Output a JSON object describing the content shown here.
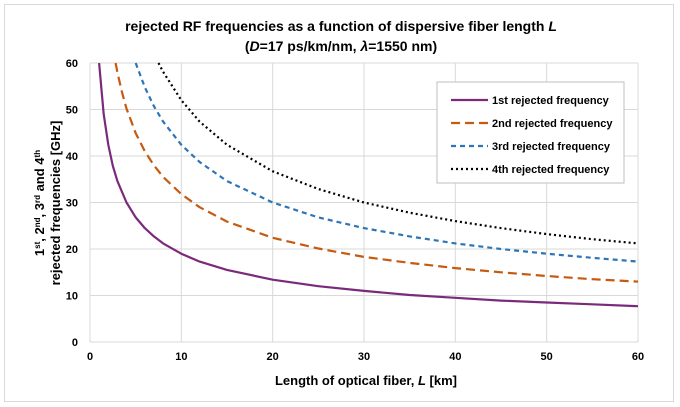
{
  "chart_data": {
    "type": "line",
    "title_line1": "rejected RF frequencies as a function of dispersive fiber length ",
    "title_line1_var": "L",
    "title_line2_pre": "(",
    "title_D": "D",
    "title_mid": "=17 ps/km/nm, ",
    "title_lambda": "λ",
    "title_post": "=1550 nm)",
    "xlabel_pre": "Length of optical fiber,  ",
    "xlabel_var": "L",
    "xlabel_post": " [km]",
    "ylabel_line1": "1st, 2nd, 3rd and 4th",
    "ylabel_line2": "rejected frequencies [GHz]",
    "xlim": [
      0,
      60
    ],
    "ylim": [
      0,
      60
    ],
    "xticks": [
      0,
      10,
      20,
      30,
      40,
      50,
      60
    ],
    "yticks": [
      0,
      10,
      20,
      30,
      40,
      50,
      60
    ],
    "grid": true,
    "legend_position": "top-right",
    "series": [
      {
        "name": "1st rejected frequency",
        "color": "#7b2a7b",
        "dash": "solid",
        "x": [
          1.0,
          1.5,
          2,
          2.5,
          3,
          4,
          5,
          6,
          7,
          8,
          10,
          12,
          15,
          20,
          25,
          30,
          35,
          40,
          45,
          50,
          55,
          60
        ],
        "y": [
          60.0,
          49.0,
          42.4,
          37.9,
          34.6,
          30.0,
          26.8,
          24.5,
          22.7,
          21.2,
          19.0,
          17.3,
          15.5,
          13.4,
          12.0,
          11.0,
          10.1,
          9.5,
          8.9,
          8.5,
          8.1,
          7.7
        ]
      },
      {
        "name": "2nd rejected frequency",
        "color": "#c55a11",
        "dash": "long",
        "x": [
          2.8,
          3,
          3.5,
          4,
          5,
          6,
          7,
          8,
          10,
          12,
          15,
          20,
          25,
          30,
          35,
          40,
          45,
          50,
          55,
          60
        ],
        "y": [
          60.0,
          58.0,
          53.7,
          50.2,
          44.9,
          41.0,
          38.0,
          35.5,
          31.8,
          29.0,
          25.9,
          22.4,
          20.1,
          18.3,
          17.0,
          15.9,
          15.0,
          14.2,
          13.5,
          13.0
        ]
      },
      {
        "name": "3rd rejected frequency",
        "color": "#2e75b6",
        "dash": "dash",
        "x": [
          5.0,
          6,
          7,
          8,
          10,
          12,
          15,
          20,
          25,
          30,
          35,
          40,
          45,
          50,
          55,
          60
        ],
        "y": [
          60.0,
          54.8,
          50.7,
          47.4,
          42.4,
          38.7,
          34.6,
          30.0,
          26.8,
          24.5,
          22.7,
          21.2,
          20.0,
          19.0,
          18.1,
          17.3
        ]
      },
      {
        "name": "4th rejected frequency",
        "color": "#000000",
        "dash": "dot",
        "x": [
          7.5,
          8,
          10,
          12,
          15,
          20,
          25,
          30,
          35,
          40,
          45,
          50,
          55,
          60
        ],
        "y": [
          60.0,
          58.1,
          52.0,
          47.4,
          42.4,
          36.7,
          32.9,
          30.0,
          27.8,
          26.0,
          24.5,
          23.2,
          22.1,
          21.2
        ]
      }
    ]
  }
}
